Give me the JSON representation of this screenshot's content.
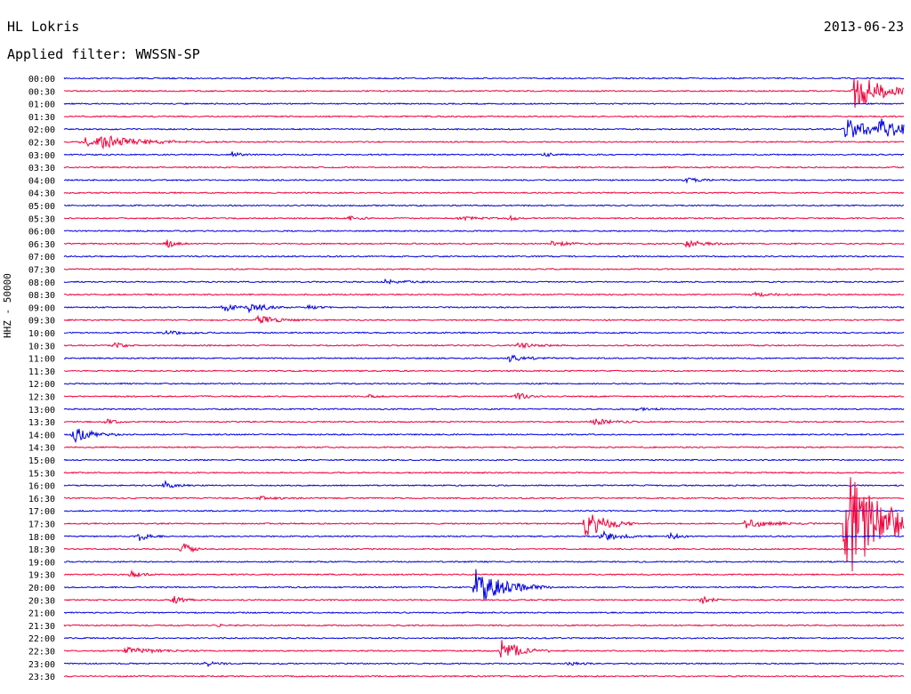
{
  "header": {
    "station": "HL Lokris",
    "date": "2013-06-23",
    "filter": "Applied filter: WWSSN-SP"
  },
  "chart_data": {
    "type": "line",
    "title": "HL Lokris",
    "subtitle": "Applied filter: WWSSN-SP",
    "ylabel": "HHZ - 50000",
    "colors": [
      "#0000e0",
      "#f0003c"
    ],
    "rows": [
      {
        "label": "00:00",
        "events": []
      },
      {
        "label": "00:30",
        "events": [
          {
            "x": 0.94,
            "amp": 3.2,
            "dur": 0.03
          }
        ]
      },
      {
        "label": "01:00",
        "events": []
      },
      {
        "label": "01:30",
        "events": []
      },
      {
        "label": "02:00",
        "events": [
          {
            "x": 0.93,
            "amp": 1.6,
            "dur": 0.04
          },
          {
            "x": 0.97,
            "amp": 1.2,
            "dur": 0.03
          }
        ]
      },
      {
        "label": "02:30",
        "events": [
          {
            "x": 0.02,
            "amp": 0.8,
            "dur": 0.03
          },
          {
            "x": 0.04,
            "amp": 0.8,
            "dur": 0.05
          }
        ]
      },
      {
        "label": "03:00",
        "events": [
          {
            "x": 0.2,
            "amp": 0.4,
            "dur": 0.01
          },
          {
            "x": 0.57,
            "amp": 0.4,
            "dur": 0.01
          }
        ]
      },
      {
        "label": "03:30",
        "events": []
      },
      {
        "label": "04:00",
        "events": [
          {
            "x": 0.74,
            "amp": 0.3,
            "dur": 0.02
          }
        ]
      },
      {
        "label": "04:30",
        "events": []
      },
      {
        "label": "05:00",
        "events": []
      },
      {
        "label": "05:30",
        "events": [
          {
            "x": 0.34,
            "amp": 0.4,
            "dur": 0.01
          },
          {
            "x": 0.47,
            "amp": 0.3,
            "dur": 0.02
          },
          {
            "x": 0.53,
            "amp": 0.4,
            "dur": 0.01
          }
        ]
      },
      {
        "label": "06:00",
        "events": []
      },
      {
        "label": "06:30",
        "events": [
          {
            "x": 0.12,
            "amp": 0.8,
            "dur": 0.01
          },
          {
            "x": 0.58,
            "amp": 0.4,
            "dur": 0.02
          },
          {
            "x": 0.74,
            "amp": 0.6,
            "dur": 0.02
          }
        ]
      },
      {
        "label": "07:00",
        "events": []
      },
      {
        "label": "07:30",
        "events": []
      },
      {
        "label": "08:00",
        "events": [
          {
            "x": 0.38,
            "amp": 0.4,
            "dur": 0.02
          }
        ]
      },
      {
        "label": "08:30",
        "events": [
          {
            "x": 0.82,
            "amp": 0.3,
            "dur": 0.02
          }
        ]
      },
      {
        "label": "09:00",
        "events": [
          {
            "x": 0.19,
            "amp": 0.6,
            "dur": 0.02
          },
          {
            "x": 0.22,
            "amp": 0.6,
            "dur": 0.02
          },
          {
            "x": 0.29,
            "amp": 0.4,
            "dur": 0.01
          }
        ]
      },
      {
        "label": "09:30",
        "events": [
          {
            "x": 0.23,
            "amp": 0.8,
            "dur": 0.02
          }
        ]
      },
      {
        "label": "10:00",
        "events": [
          {
            "x": 0.12,
            "amp": 0.3,
            "dur": 0.02
          }
        ]
      },
      {
        "label": "10:30",
        "events": [
          {
            "x": 0.06,
            "amp": 0.5,
            "dur": 0.01
          },
          {
            "x": 0.54,
            "amp": 0.4,
            "dur": 0.02
          }
        ]
      },
      {
        "label": "11:00",
        "events": [
          {
            "x": 0.53,
            "amp": 0.5,
            "dur": 0.02
          }
        ]
      },
      {
        "label": "11:30",
        "events": []
      },
      {
        "label": "12:00",
        "events": []
      },
      {
        "label": "12:30",
        "events": [
          {
            "x": 0.36,
            "amp": 0.3,
            "dur": 0.01
          },
          {
            "x": 0.54,
            "amp": 0.6,
            "dur": 0.01
          }
        ]
      },
      {
        "label": "13:00",
        "events": [
          {
            "x": 0.68,
            "amp": 0.2,
            "dur": 0.02
          }
        ]
      },
      {
        "label": "13:30",
        "events": [
          {
            "x": 0.05,
            "amp": 0.5,
            "dur": 0.01
          },
          {
            "x": 0.63,
            "amp": 0.5,
            "dur": 0.02
          }
        ]
      },
      {
        "label": "14:00",
        "events": [
          {
            "x": 0.01,
            "amp": 1.3,
            "dur": 0.02
          }
        ]
      },
      {
        "label": "14:30",
        "events": []
      },
      {
        "label": "15:00",
        "events": []
      },
      {
        "label": "15:30",
        "events": []
      },
      {
        "label": "16:00",
        "events": [
          {
            "x": 0.12,
            "amp": 0.7,
            "dur": 0.01
          }
        ]
      },
      {
        "label": "16:30",
        "events": [
          {
            "x": 0.23,
            "amp": 0.3,
            "dur": 0.02
          }
        ]
      },
      {
        "label": "17:00",
        "events": []
      },
      {
        "label": "17:30",
        "events": [
          {
            "x": 0.62,
            "amp": 3.0,
            "dur": 0.02
          },
          {
            "x": 0.81,
            "amp": 0.7,
            "dur": 0.03
          },
          {
            "x": 0.93,
            "amp": 10.0,
            "dur": 0.04
          }
        ]
      },
      {
        "label": "18:00",
        "events": [
          {
            "x": 0.09,
            "amp": 0.8,
            "dur": 0.01
          },
          {
            "x": 0.64,
            "amp": 0.8,
            "dur": 0.02
          },
          {
            "x": 0.72,
            "amp": 0.6,
            "dur": 0.01
          }
        ]
      },
      {
        "label": "18:30",
        "events": [
          {
            "x": 0.14,
            "amp": 1.2,
            "dur": 0.01
          }
        ]
      },
      {
        "label": "19:00",
        "events": []
      },
      {
        "label": "19:30",
        "events": [
          {
            "x": 0.08,
            "amp": 0.6,
            "dur": 0.01
          }
        ]
      },
      {
        "label": "20:00",
        "events": [
          {
            "x": 0.49,
            "amp": 3.0,
            "dur": 0.03
          }
        ]
      },
      {
        "label": "20:30",
        "events": [
          {
            "x": 0.13,
            "amp": 0.7,
            "dur": 0.01
          },
          {
            "x": 0.76,
            "amp": 0.6,
            "dur": 0.01
          }
        ]
      },
      {
        "label": "21:00",
        "events": []
      },
      {
        "label": "21:30",
        "events": [
          {
            "x": 0.18,
            "amp": 0.3,
            "dur": 0.01
          }
        ]
      },
      {
        "label": "22:00",
        "events": []
      },
      {
        "label": "22:30",
        "events": [
          {
            "x": 0.07,
            "amp": 0.6,
            "dur": 0.03
          },
          {
            "x": 0.52,
            "amp": 2.0,
            "dur": 0.02
          }
        ]
      },
      {
        "label": "23:00",
        "events": [
          {
            "x": 0.17,
            "amp": 0.4,
            "dur": 0.01
          },
          {
            "x": 0.6,
            "amp": 0.4,
            "dur": 0.01
          }
        ]
      },
      {
        "label": "23:30",
        "events": []
      }
    ]
  }
}
